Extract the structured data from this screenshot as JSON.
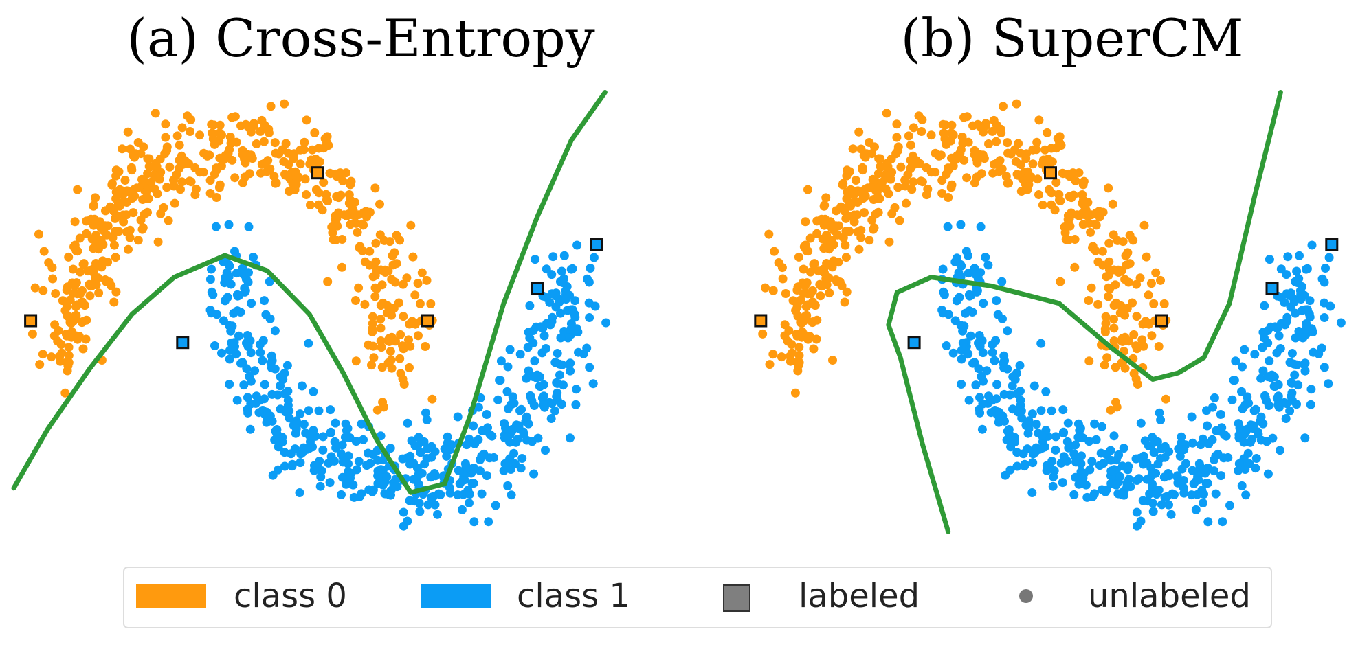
{
  "chart_data": [
    {
      "type": "scatter",
      "title": "(a) Cross-Entropy",
      "xlim": [
        -1.3,
        2.3
      ],
      "ylim": [
        -0.8,
        1.3
      ],
      "grid": false,
      "labeled_points": [
        {
          "class": 0,
          "x": -1.2,
          "y": 0.22
        },
        {
          "class": 0,
          "x": 0.5,
          "y": 0.9
        },
        {
          "class": 0,
          "x": 1.15,
          "y": 0.22
        },
        {
          "class": 1,
          "x": -0.3,
          "y": 0.12
        },
        {
          "class": 1,
          "x": 1.8,
          "y": 0.37
        },
        {
          "class": 1,
          "x": 2.15,
          "y": 0.57
        }
      ],
      "decision_boundary": {
        "x": [
          -1.3,
          -1.1,
          -0.85,
          -0.6,
          -0.35,
          -0.05,
          0.2,
          0.45,
          0.65,
          0.85,
          1.05,
          1.25,
          1.4,
          1.6,
          1.8,
          2.0,
          2.2
        ],
        "y": [
          -0.55,
          -0.28,
          0.0,
          0.25,
          0.42,
          0.52,
          0.45,
          0.25,
          -0.02,
          -0.33,
          -0.57,
          -0.53,
          -0.22,
          0.3,
          0.7,
          1.05,
          1.27
        ]
      }
    },
    {
      "type": "scatter",
      "title": "(b) SuperCM",
      "xlim": [
        -1.3,
        2.3
      ],
      "ylim": [
        -0.8,
        1.3
      ],
      "grid": false,
      "labeled_points": [
        {
          "class": 0,
          "x": -1.2,
          "y": 0.22
        },
        {
          "class": 0,
          "x": 0.5,
          "y": 0.9
        },
        {
          "class": 0,
          "x": 1.15,
          "y": 0.22
        },
        {
          "class": 1,
          "x": -0.3,
          "y": 0.12
        },
        {
          "class": 1,
          "x": 1.8,
          "y": 0.37
        },
        {
          "class": 1,
          "x": 2.15,
          "y": 0.57
        }
      ],
      "decision_boundary": {
        "x": [
          -0.1,
          -0.25,
          -0.38,
          -0.45,
          -0.4,
          -0.2,
          0.15,
          0.55,
          0.85,
          1.1,
          1.25,
          1.4,
          1.55,
          1.7,
          1.85
        ],
        "y": [
          -0.75,
          -0.35,
          0.05,
          0.2,
          0.35,
          0.42,
          0.38,
          0.3,
          0.1,
          -0.05,
          -0.02,
          0.05,
          0.3,
          0.8,
          1.27
        ]
      }
    }
  ],
  "colors": {
    "class0": "#FF9A0E",
    "class1": "#0B9CF5",
    "boundary": "#2F9A36",
    "marker_edge": "#111111",
    "labeled_legend": "#7F7F7F",
    "unlabeled_legend": "#777777"
  },
  "legend": {
    "placement": "bottom",
    "items": [
      {
        "label": "class 0",
        "kind": "patch",
        "color": "#FF9A0E"
      },
      {
        "label": "class 1",
        "kind": "patch",
        "color": "#0B9CF5"
      },
      {
        "label": "labeled",
        "kind": "square",
        "color": "#7F7F7F"
      },
      {
        "label": "unlabeled",
        "kind": "dot",
        "color": "#777777"
      }
    ]
  }
}
